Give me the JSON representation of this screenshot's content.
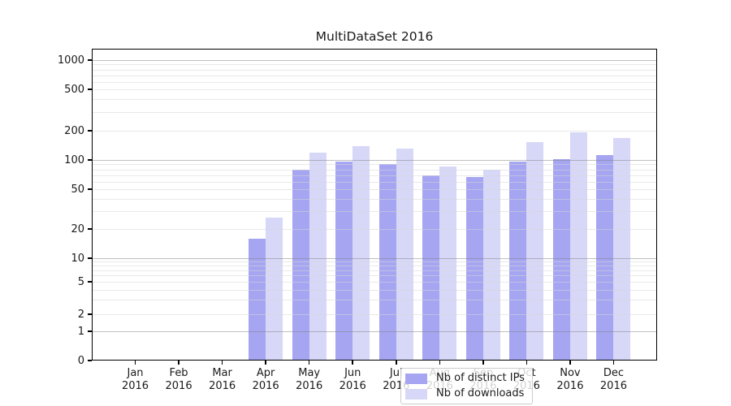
{
  "chart_data": {
    "type": "bar",
    "title": "MultiDataSet 2016",
    "categories": [
      "Jan",
      "Feb",
      "Mar",
      "Apr",
      "May",
      "Jun",
      "Jul",
      "Aug",
      "Sep",
      "Oct",
      "Nov",
      "Dec"
    ],
    "category_year": "2016",
    "series": [
      {
        "name": "Nb of distinct IPs",
        "color": "#a5a5f2",
        "values": [
          0,
          0,
          0,
          16,
          80,
          97,
          91,
          70,
          67,
          97,
          102,
          112
        ]
      },
      {
        "name": "Nb of downloads",
        "color": "#d7d7f8",
        "values": [
          0,
          0,
          0,
          26,
          118,
          140,
          131,
          85,
          80,
          152,
          192,
          167
        ]
      }
    ],
    "yscale": "symlog",
    "ylim": [
      0,
      1000
    ],
    "yticks": [
      0,
      1,
      2,
      5,
      10,
      20,
      50,
      100,
      200,
      500,
      1000
    ],
    "grid": true,
    "legend_position": "lower-center",
    "colors": {
      "background": "#ffffff",
      "major_grid": "#b4b4b4",
      "minor_grid": "#e8e8e8",
      "axis": "#000000",
      "text": "#1a1a1a"
    }
  }
}
